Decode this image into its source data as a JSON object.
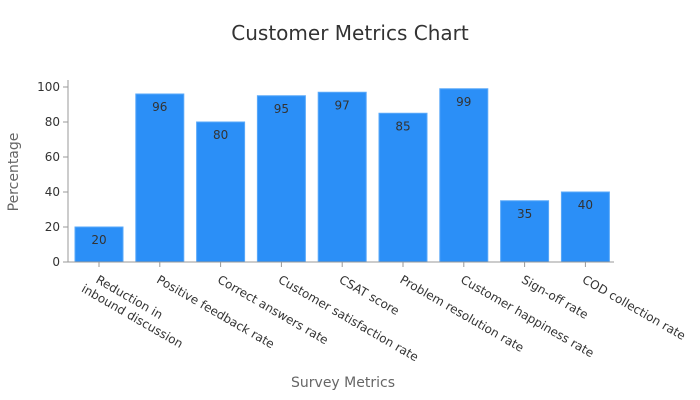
{
  "chart_data": {
    "type": "bar",
    "title": "Customer Metrics Chart",
    "xlabel": "Survey Metrics",
    "ylabel": "Percentage",
    "ylim": [
      0,
      100
    ],
    "yticks": [
      0,
      20,
      40,
      60,
      80,
      100
    ],
    "grid": false,
    "categories": [
      [
        "Reduction in",
        "inbound discussion"
      ],
      [
        "Positive feedback rate"
      ],
      [
        "Correct answers rate"
      ],
      [
        "Customer satisfaction rate"
      ],
      [
        "CSAT score"
      ],
      [
        "Problem resolution rate"
      ],
      [
        "Customer happiness rate"
      ],
      [
        "Sign-off rate"
      ],
      [
        "COD collection rate"
      ]
    ],
    "values": [
      20,
      96,
      80,
      95,
      97,
      85,
      99,
      35,
      40
    ],
    "bar_color": "#2b8ff7"
  }
}
